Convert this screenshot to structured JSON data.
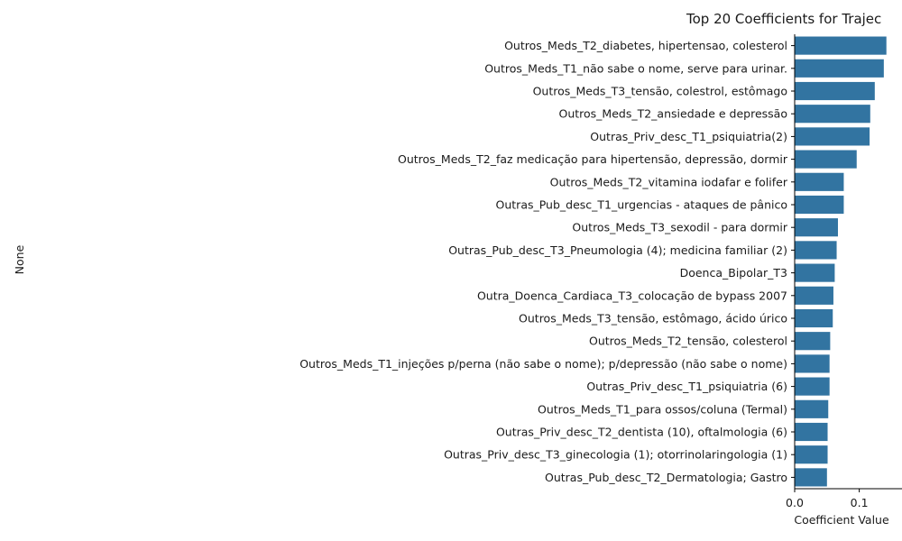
{
  "chart_data": {
    "type": "bar",
    "orientation": "horizontal",
    "title": "Top 20 Coefficients for Trajec",
    "xlabel": "Coefficient Value",
    "ylabel": "None",
    "xlim": [
      0,
      0.148
    ],
    "xticks": [
      0.0,
      0.1
    ],
    "xtick_labels": [
      "0.0",
      "0.1"
    ],
    "bar_color": "#3274a1",
    "grid": false,
    "categories": [
      "Outros_Meds_T2_diabetes, hipertensao, colesterol",
      "Outros_Meds_T1_não sabe o nome, serve para urinar.",
      "Outros_Meds_T3_tensão, colestrol, estômago",
      "Outros_Meds_T2_ansiedade e depressão",
      "Outras_Priv_desc_T1_psiquiatria(2)",
      "Outros_Meds_T2_faz medicação para hipertensão, depressão, dormir",
      "Outros_Meds_T2_vitamina iodafar e folifer",
      "Outras_Pub_desc_T1_urgencias - ataques de pânico",
      "Outros_Meds_T3_sexodil - para dormir",
      "Outras_Pub_desc_T3_Pneumologia (4); medicina familiar (2)",
      "Doenca_Bipolar_T3",
      "Outra_Doenca_Cardiaca_T3_colocação de bypass 2007",
      "Outros_Meds_T3_tensão, estômago, ácido úrico",
      "Outros_Meds_T2_tensão, colesterol",
      "Outros_Meds_T1_injeções p/perna (não sabe o nome); p/depressão (não sabe o nome)",
      "Outras_Priv_desc_T1_psiquiatria (6)",
      "Outros_Meds_T1_para ossos/coluna (Termal)",
      "Outras_Priv_desc_T2_dentista (10), oftalmologia (6)",
      "Outras_Priv_desc_T3_ginecologia (1); otorrinolaringologia (1)",
      "Outras_Pub_desc_T2_Dermatologia; Gastro"
    ],
    "values": [
      0.142,
      0.138,
      0.124,
      0.117,
      0.116,
      0.096,
      0.076,
      0.076,
      0.067,
      0.065,
      0.062,
      0.06,
      0.059,
      0.055,
      0.054,
      0.054,
      0.052,
      0.051,
      0.051,
      0.05
    ]
  }
}
